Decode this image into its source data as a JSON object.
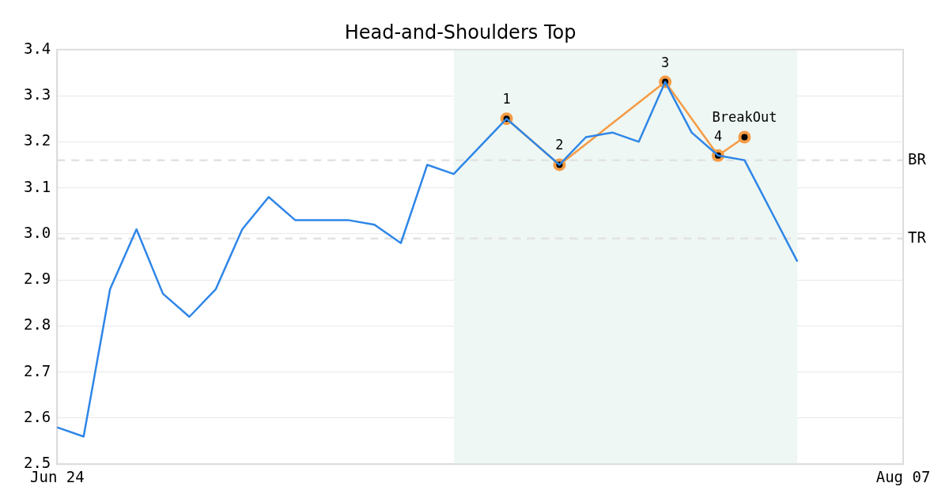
{
  "chart_data": {
    "type": "line",
    "title": "Head-and-Shoulders Top",
    "categories": [
      "Jun 24",
      null,
      null,
      null,
      null,
      null,
      null,
      null,
      null,
      null,
      null,
      null,
      null,
      null,
      null,
      null,
      null,
      null,
      null,
      null,
      null,
      null,
      null,
      null,
      null,
      null,
      null,
      null,
      null,
      null,
      null,
      null,
      "Aug 07"
    ],
    "series": [
      {
        "color": "#2e86e8",
        "marker": "none",
        "values": [
          2.58,
          2.56,
          2.88,
          3.01,
          2.87,
          2.82,
          2.88,
          3.01,
          3.08,
          3.03,
          3.03,
          3.03,
          3.02,
          2.98,
          3.15,
          3.13,
          3.19,
          3.25,
          3.2,
          3.15,
          3.21,
          3.22,
          3.2,
          3.33,
          3.22,
          3.17,
          3.16,
          3.05,
          2.94,
          null,
          null,
          null,
          null
        ]
      },
      {
        "color": "#f59b45",
        "marker": "circle",
        "values": [
          null,
          null,
          null,
          null,
          null,
          null,
          null,
          null,
          null,
          null,
          null,
          null,
          null,
          null,
          null,
          null,
          null,
          3.25,
          null,
          3.15,
          null,
          null,
          null,
          3.33,
          null,
          3.17,
          3.21,
          null,
          null,
          null,
          null,
          null,
          null
        ]
      }
    ],
    "annotations": [
      "1",
      "2",
      "3",
      "4",
      "BreakOut"
    ],
    "ylim": [
      2.5,
      3.4
    ],
    "yticks": [
      2.5,
      2.6,
      2.7,
      2.8,
      2.9,
      {
        "value": 3,
        "label": "3.0"
      },
      3.1,
      3.2,
      3.3,
      3.4
    ],
    "grid": "y",
    "legend": false,
    "ref_lines": [
      {
        "axis": "y",
        "value": 3.16,
        "label": "BR",
        "color": "#e2e2e2",
        "line_style": "dashed"
      },
      {
        "axis": "y",
        "value": 2.99,
        "label": "TR",
        "color": "#e2e2e2",
        "line_style": "dashed"
      }
    ]
  }
}
